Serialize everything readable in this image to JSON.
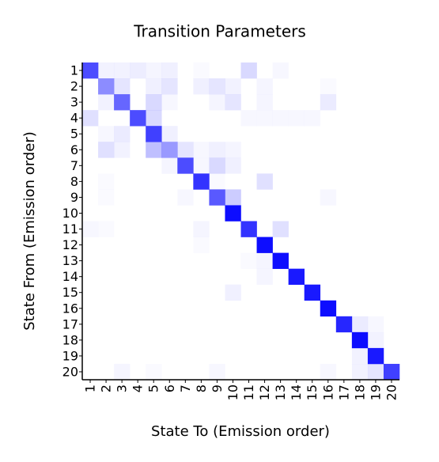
{
  "chart_data": {
    "type": "heatmap",
    "title": "Transition Parameters",
    "x_label": "State To (Emission order)",
    "y_label": "State From (Emission order)",
    "x_categories": [
      "1",
      "2",
      "3",
      "4",
      "5",
      "6",
      "7",
      "8",
      "9",
      "10",
      "11",
      "12",
      "13",
      "14",
      "15",
      "16",
      "17",
      "18",
      "19",
      "20"
    ],
    "y_categories": [
      "1",
      "2",
      "3",
      "4",
      "5",
      "6",
      "7",
      "8",
      "9",
      "10",
      "11",
      "12",
      "13",
      "14",
      "15",
      "16",
      "17",
      "18",
      "19",
      "20"
    ],
    "color": "#0000ff",
    "z": [
      [
        0.7,
        0.05,
        0.05,
        0.07,
        0.04,
        0.06,
        0,
        0.02,
        0,
        0,
        0.15,
        0,
        0.03,
        0,
        0,
        0,
        0,
        0,
        0,
        0
      ],
      [
        0,
        0.45,
        0.1,
        0,
        0.06,
        0.1,
        0,
        0.06,
        0.1,
        0.05,
        0,
        0.04,
        0,
        0,
        0,
        0.02,
        0,
        0,
        0,
        0
      ],
      [
        0,
        0.05,
        0.6,
        0,
        0.15,
        0.03,
        0,
        0,
        0.04,
        0.1,
        0,
        0.04,
        0,
        0,
        0,
        0.08,
        0,
        0,
        0,
        0
      ],
      [
        0.12,
        0,
        0,
        0.7,
        0.15,
        0,
        0,
        0,
        0,
        0,
        0.03,
        0.03,
        0.03,
        0.03,
        0.03,
        0,
        0,
        0,
        0,
        0
      ],
      [
        0,
        0.03,
        0.08,
        0,
        0.75,
        0.06,
        0,
        0,
        0,
        0,
        0,
        0,
        0,
        0,
        0,
        0,
        0,
        0,
        0,
        0
      ],
      [
        0,
        0.12,
        0.05,
        0,
        0.25,
        0.4,
        0.1,
        0.03,
        0.06,
        0.04,
        0,
        0,
        0,
        0,
        0,
        0,
        0,
        0,
        0,
        0
      ],
      [
        0,
        0,
        0,
        0,
        0,
        0.04,
        0.7,
        0.03,
        0.15,
        0.06,
        0,
        0,
        0,
        0,
        0,
        0,
        0,
        0,
        0,
        0
      ],
      [
        0,
        0.02,
        0,
        0,
        0,
        0,
        0,
        0.8,
        0.02,
        0,
        0,
        0.12,
        0,
        0,
        0,
        0,
        0,
        0,
        0,
        0
      ],
      [
        0,
        0.02,
        0,
        0,
        0,
        0,
        0.03,
        0,
        0.65,
        0.2,
        0,
        0,
        0,
        0,
        0,
        0.03,
        0,
        0,
        0,
        0
      ],
      [
        0,
        0,
        0,
        0,
        0,
        0,
        0,
        0,
        0,
        0.95,
        0,
        0,
        0,
        0,
        0,
        0,
        0,
        0,
        0,
        0
      ],
      [
        0.03,
        0.02,
        0,
        0,
        0,
        0,
        0,
        0.04,
        0,
        0,
        0.8,
        0,
        0.12,
        0,
        0,
        0,
        0,
        0,
        0,
        0
      ],
      [
        0,
        0,
        0,
        0,
        0,
        0,
        0,
        0.02,
        0,
        0,
        0,
        0.95,
        0,
        0,
        0,
        0,
        0,
        0,
        0,
        0
      ],
      [
        0,
        0,
        0,
        0,
        0,
        0,
        0,
        0,
        0,
        0,
        0.02,
        0.04,
        0.95,
        0,
        0,
        0,
        0,
        0,
        0,
        0
      ],
      [
        0,
        0,
        0,
        0,
        0,
        0,
        0,
        0,
        0,
        0,
        0,
        0.04,
        0,
        0.9,
        0,
        0,
        0,
        0,
        0,
        0
      ],
      [
        0,
        0,
        0,
        0,
        0,
        0,
        0,
        0,
        0,
        0.06,
        0,
        0,
        0,
        0,
        0.9,
        0,
        0,
        0,
        0,
        0
      ],
      [
        0,
        0,
        0,
        0,
        0,
        0,
        0,
        0,
        0,
        0,
        0,
        0,
        0,
        0,
        0,
        0.95,
        0,
        0,
        0,
        0
      ],
      [
        0,
        0,
        0,
        0,
        0,
        0,
        0,
        0,
        0,
        0,
        0,
        0,
        0,
        0,
        0,
        0,
        0.85,
        0.08,
        0.03,
        0
      ],
      [
        0,
        0,
        0,
        0,
        0,
        0,
        0,
        0,
        0,
        0,
        0,
        0,
        0,
        0,
        0,
        0,
        0,
        0.95,
        0.05,
        0
      ],
      [
        0,
        0,
        0,
        0,
        0,
        0,
        0,
        0,
        0,
        0,
        0,
        0,
        0,
        0,
        0,
        0,
        0,
        0.05,
        0.9,
        0
      ],
      [
        0,
        0,
        0.04,
        0,
        0.02,
        0,
        0,
        0,
        0.03,
        0,
        0,
        0,
        0,
        0,
        0,
        0.03,
        0,
        0.05,
        0.1,
        0.75
      ]
    ]
  }
}
